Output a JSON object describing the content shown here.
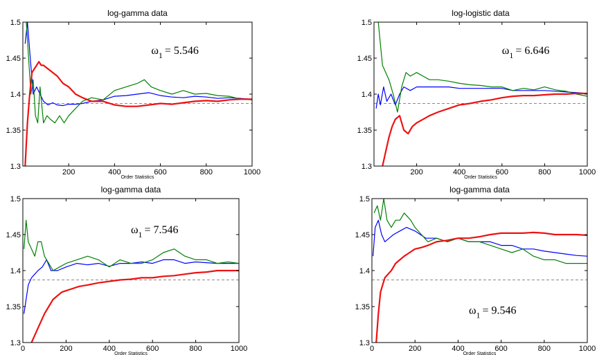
{
  "chart_data": [
    {
      "type": "line",
      "title": "log-gamma data",
      "xlabel": "Order Statistics",
      "ylabel": "",
      "xlim": [
        0,
        1000
      ],
      "ylim": [
        1.3,
        1.5
      ],
      "xticks": [
        200,
        400,
        600,
        800,
        1000
      ],
      "yticks": [
        1.3,
        1.35,
        1.4,
        1.45,
        1.5
      ],
      "xtick_labels": [
        "200",
        "400",
        "600",
        "800",
        "1000"
      ],
      "ytick_labels": [
        "1.3",
        "1.35",
        "1.4",
        "1.45",
        "1.5"
      ],
      "annotation": {
        "symbol": "ω",
        "subscript": "1",
        "text": "= 5.546"
      },
      "reference_line": {
        "y": 1.387,
        "style": "dashed",
        "color": "#888888"
      },
      "grid": false,
      "series": [
        {
          "color": "#0000ff",
          "width": 1.2,
          "x": [
            10,
            20,
            30,
            45,
            60,
            75,
            90,
            110,
            130,
            150,
            175,
            200,
            230,
            260,
            300,
            350,
            400,
            450,
            500,
            550,
            600,
            650,
            700,
            750,
            800,
            850,
            900,
            950,
            1000
          ],
          "y": [
            1.47,
            1.5,
            1.46,
            1.4,
            1.41,
            1.4,
            1.39,
            1.385,
            1.388,
            1.385,
            1.384,
            1.386,
            1.386,
            1.387,
            1.39,
            1.392,
            1.397,
            1.398,
            1.4,
            1.402,
            1.398,
            1.396,
            1.395,
            1.397,
            1.396,
            1.394,
            1.395,
            1.394,
            1.393
          ]
        },
        {
          "color": "#008000",
          "width": 1.2,
          "x": [
            15,
            25,
            35,
            45,
            55,
            65,
            75,
            90,
            105,
            120,
            140,
            160,
            180,
            200,
            230,
            260,
            300,
            350,
            400,
            450,
            500,
            530,
            560,
            600,
            650,
            700,
            750,
            800,
            850,
            900,
            950,
            1000
          ],
          "y": [
            1.5,
            1.45,
            1.4,
            1.42,
            1.37,
            1.36,
            1.41,
            1.36,
            1.37,
            1.365,
            1.36,
            1.37,
            1.36,
            1.37,
            1.38,
            1.39,
            1.395,
            1.392,
            1.405,
            1.41,
            1.415,
            1.42,
            1.41,
            1.405,
            1.4,
            1.405,
            1.4,
            1.401,
            1.398,
            1.397,
            1.393,
            1.392
          ]
        },
        {
          "color": "#ee1111",
          "width": 2.2,
          "x": [
            10,
            20,
            30,
            40,
            50,
            60,
            70,
            80,
            90,
            110,
            130,
            150,
            175,
            200,
            230,
            260,
            300,
            350,
            400,
            450,
            500,
            550,
            600,
            650,
            700,
            750,
            800,
            850,
            900,
            950,
            1000
          ],
          "y": [
            1.3,
            1.36,
            1.4,
            1.43,
            1.435,
            1.44,
            1.445,
            1.44,
            1.44,
            1.435,
            1.43,
            1.425,
            1.415,
            1.41,
            1.4,
            1.395,
            1.39,
            1.39,
            1.385,
            1.383,
            1.383,
            1.385,
            1.387,
            1.386,
            1.388,
            1.39,
            1.391,
            1.39,
            1.392,
            1.393,
            1.393
          ]
        }
      ]
    },
    {
      "type": "line",
      "title": "log-logistic data",
      "xlabel": "Order Statistics",
      "ylabel": "",
      "xlim": [
        0,
        1000
      ],
      "ylim": [
        1.3,
        1.5
      ],
      "xticks": [
        200,
        400,
        600,
        800,
        1000
      ],
      "yticks": [
        1.3,
        1.35,
        1.4,
        1.45,
        1.5
      ],
      "xtick_labels": [
        "200",
        "400",
        "600",
        "800",
        "1000"
      ],
      "ytick_labels": [
        "1.3",
        "1.35",
        "1.4",
        "1.45",
        "1.5"
      ],
      "annotation": {
        "symbol": "ω",
        "subscript": "1",
        "text": "= 6.646"
      },
      "reference_line": {
        "y": 1.387,
        "style": "dashed",
        "color": "#888888"
      },
      "grid": false,
      "series": [
        {
          "color": "#0000ff",
          "width": 1.2,
          "x": [
            10,
            20,
            30,
            45,
            60,
            80,
            100,
            120,
            140,
            170,
            200,
            250,
            300,
            350,
            400,
            450,
            500,
            550,
            600,
            650,
            700,
            750,
            800,
            850,
            900,
            950,
            1000
          ],
          "y": [
            1.38,
            1.4,
            1.385,
            1.41,
            1.39,
            1.4,
            1.385,
            1.4,
            1.41,
            1.405,
            1.41,
            1.41,
            1.41,
            1.41,
            1.408,
            1.408,
            1.408,
            1.408,
            1.408,
            1.405,
            1.405,
            1.405,
            1.405,
            1.404,
            1.403,
            1.402,
            1.401
          ]
        },
        {
          "color": "#008000",
          "width": 1.2,
          "x": [
            20,
            30,
            40,
            55,
            70,
            90,
            110,
            130,
            150,
            170,
            200,
            230,
            260,
            300,
            350,
            400,
            450,
            500,
            550,
            600,
            650,
            700,
            750,
            800,
            850,
            900,
            950,
            1000
          ],
          "y": [
            1.5,
            1.47,
            1.44,
            1.43,
            1.42,
            1.4,
            1.375,
            1.41,
            1.43,
            1.425,
            1.43,
            1.425,
            1.42,
            1.42,
            1.418,
            1.415,
            1.413,
            1.412,
            1.41,
            1.41,
            1.405,
            1.408,
            1.406,
            1.41,
            1.406,
            1.404,
            1.4,
            1.397
          ]
        },
        {
          "color": "#ee1111",
          "width": 2.2,
          "x": [
            40,
            55,
            70,
            85,
            100,
            120,
            140,
            160,
            180,
            200,
            230,
            260,
            300,
            350,
            400,
            450,
            500,
            550,
            600,
            650,
            700,
            750,
            800,
            850,
            900,
            950,
            1000
          ],
          "y": [
            1.3,
            1.32,
            1.34,
            1.355,
            1.365,
            1.37,
            1.35,
            1.345,
            1.355,
            1.36,
            1.365,
            1.37,
            1.375,
            1.38,
            1.385,
            1.387,
            1.39,
            1.392,
            1.395,
            1.397,
            1.398,
            1.398,
            1.399,
            1.4,
            1.4,
            1.401,
            1.401
          ]
        }
      ]
    },
    {
      "type": "line",
      "title": "log-gamma data",
      "xlabel": "Order Statistics",
      "ylabel": "",
      "xlim": [
        0,
        1000
      ],
      "ylim": [
        1.3,
        1.5
      ],
      "xticks": [
        0,
        200,
        400,
        600,
        800,
        1000
      ],
      "yticks": [
        1.3,
        1.35,
        1.4,
        1.45,
        1.5
      ],
      "xtick_labels": [
        "0",
        "200",
        "400",
        "600",
        "800",
        "1000"
      ],
      "ytick_labels": [
        "1.3",
        "1.35",
        "1.4",
        "1.45",
        "1.5"
      ],
      "annotation": {
        "symbol": "ω",
        "subscript": "1",
        "text": "= 7.546"
      },
      "reference_line": {
        "y": 1.387,
        "style": "dashed",
        "color": "#888888"
      },
      "grid": false,
      "series": [
        {
          "color": "#0000ff",
          "width": 1.2,
          "x": [
            5,
            15,
            25,
            40,
            55,
            70,
            90,
            110,
            130,
            160,
            200,
            250,
            300,
            350,
            400,
            450,
            500,
            550,
            600,
            650,
            700,
            750,
            800,
            850,
            900,
            950,
            1000
          ],
          "y": [
            1.34,
            1.36,
            1.38,
            1.39,
            1.395,
            1.4,
            1.405,
            1.415,
            1.4,
            1.4,
            1.405,
            1.41,
            1.408,
            1.41,
            1.406,
            1.41,
            1.41,
            1.412,
            1.41,
            1.415,
            1.415,
            1.41,
            1.412,
            1.411,
            1.41,
            1.41,
            1.41
          ]
        },
        {
          "color": "#008000",
          "width": 1.2,
          "x": [
            5,
            15,
            25,
            40,
            55,
            70,
            85,
            100,
            120,
            140,
            170,
            200,
            250,
            300,
            350,
            400,
            450,
            500,
            550,
            600,
            650,
            700,
            750,
            800,
            850,
            900,
            950,
            1000
          ],
          "y": [
            1.43,
            1.47,
            1.44,
            1.43,
            1.42,
            1.44,
            1.44,
            1.42,
            1.41,
            1.4,
            1.405,
            1.41,
            1.415,
            1.42,
            1.415,
            1.405,
            1.415,
            1.41,
            1.41,
            1.415,
            1.425,
            1.43,
            1.42,
            1.415,
            1.415,
            1.41,
            1.412,
            1.41
          ]
        },
        {
          "color": "#ee1111",
          "width": 2.2,
          "x": [
            40,
            55,
            70,
            85,
            100,
            120,
            140,
            160,
            180,
            200,
            230,
            260,
            300,
            350,
            400,
            450,
            500,
            550,
            600,
            650,
            700,
            750,
            800,
            850,
            900,
            950,
            1000
          ],
          "y": [
            1.3,
            1.31,
            1.32,
            1.33,
            1.34,
            1.35,
            1.36,
            1.365,
            1.37,
            1.372,
            1.375,
            1.378,
            1.38,
            1.383,
            1.385,
            1.387,
            1.388,
            1.39,
            1.39,
            1.392,
            1.393,
            1.395,
            1.397,
            1.398,
            1.4,
            1.4,
            1.4
          ]
        }
      ]
    },
    {
      "type": "line",
      "title": "log-gamma data",
      "xlabel": "Order Statistics",
      "ylabel": "",
      "xlim": [
        0,
        1000
      ],
      "ylim": [
        1.3,
        1.5
      ],
      "xticks": [
        0,
        200,
        400,
        600,
        800,
        1000
      ],
      "yticks": [
        1.3,
        1.35,
        1.4,
        1.45,
        1.5
      ],
      "xtick_labels": [
        "0",
        "200",
        "400",
        "600",
        "800",
        "1000"
      ],
      "ytick_labels": [
        "1.3",
        "1.35",
        "1.4",
        "1.45",
        "1.5"
      ],
      "annotation": {
        "symbol": "ω",
        "subscript": "1",
        "text": "= 9.546"
      },
      "reference_line": {
        "y": 1.387,
        "style": "dashed",
        "color": "#888888"
      },
      "grid": false,
      "series": [
        {
          "color": "#0000ff",
          "width": 1.2,
          "x": [
            5,
            15,
            30,
            45,
            60,
            80,
            100,
            130,
            160,
            200,
            250,
            300,
            350,
            400,
            450,
            500,
            550,
            600,
            650,
            700,
            750,
            800,
            850,
            900,
            950,
            1000
          ],
          "y": [
            1.42,
            1.46,
            1.47,
            1.45,
            1.44,
            1.445,
            1.45,
            1.455,
            1.46,
            1.455,
            1.445,
            1.445,
            1.44,
            1.445,
            1.44,
            1.44,
            1.44,
            1.435,
            1.435,
            1.43,
            1.43,
            1.427,
            1.425,
            1.423,
            1.421,
            1.42
          ]
        },
        {
          "color": "#008000",
          "width": 1.2,
          "x": [
            10,
            25,
            40,
            55,
            70,
            90,
            110,
            130,
            150,
            180,
            200,
            230,
            260,
            300,
            350,
            400,
            450,
            500,
            550,
            600,
            650,
            700,
            750,
            800,
            850,
            900,
            950,
            1000
          ],
          "y": [
            1.48,
            1.49,
            1.47,
            1.5,
            1.47,
            1.46,
            1.47,
            1.47,
            1.48,
            1.47,
            1.46,
            1.45,
            1.44,
            1.445,
            1.44,
            1.445,
            1.44,
            1.44,
            1.435,
            1.43,
            1.425,
            1.43,
            1.42,
            1.415,
            1.415,
            1.41,
            1.41,
            1.41
          ]
        },
        {
          "color": "#ee1111",
          "width": 2.2,
          "x": [
            20,
            30,
            40,
            50,
            60,
            75,
            90,
            110,
            130,
            150,
            175,
            200,
            230,
            260,
            300,
            350,
            400,
            450,
            500,
            550,
            600,
            650,
            700,
            750,
            800,
            850,
            900,
            950,
            1000
          ],
          "y": [
            1.3,
            1.34,
            1.37,
            1.38,
            1.39,
            1.395,
            1.4,
            1.41,
            1.415,
            1.42,
            1.425,
            1.43,
            1.432,
            1.435,
            1.44,
            1.442,
            1.445,
            1.445,
            1.447,
            1.45,
            1.452,
            1.452,
            1.452,
            1.453,
            1.452,
            1.45,
            1.45,
            1.45,
            1.449
          ]
        }
      ]
    }
  ]
}
